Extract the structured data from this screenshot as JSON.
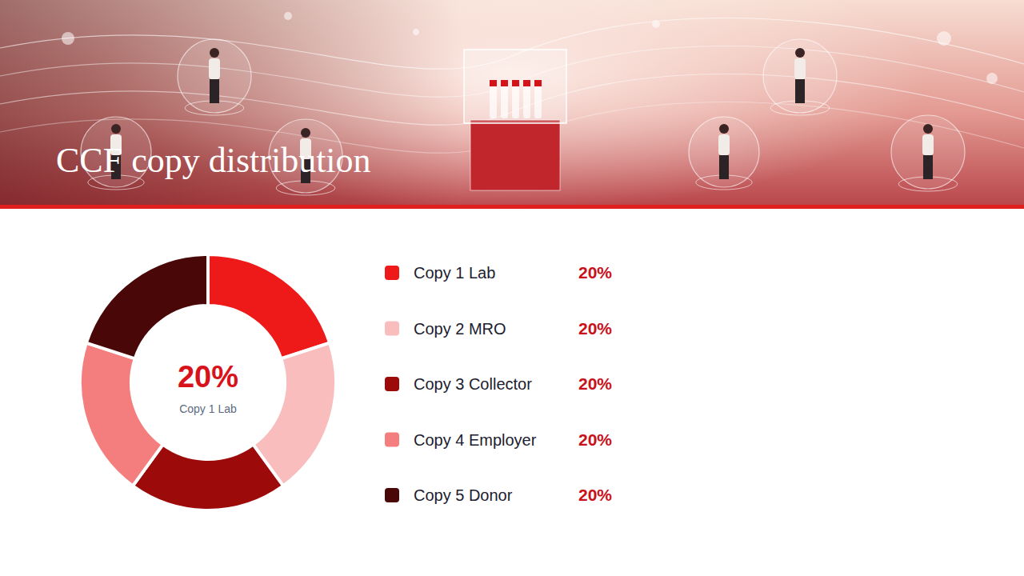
{
  "chart_data": {
    "type": "donut",
    "title": "CCF copy distribution",
    "categories": [
      "Copy 1 Lab",
      "Copy 2 MRO",
      "Copy 3 Collector",
      "Copy 4 Employer",
      "Copy 5 Donor"
    ],
    "values": [
      20,
      20,
      20,
      20,
      20
    ],
    "value_labels": [
      "20%",
      "20%",
      "20%",
      "20%",
      "20%"
    ],
    "colors": [
      "#ee1a1a",
      "#f9bdbd",
      "#9c0a0a",
      "#f47e7e",
      "#4a0707"
    ],
    "legend": "right"
  }
}
